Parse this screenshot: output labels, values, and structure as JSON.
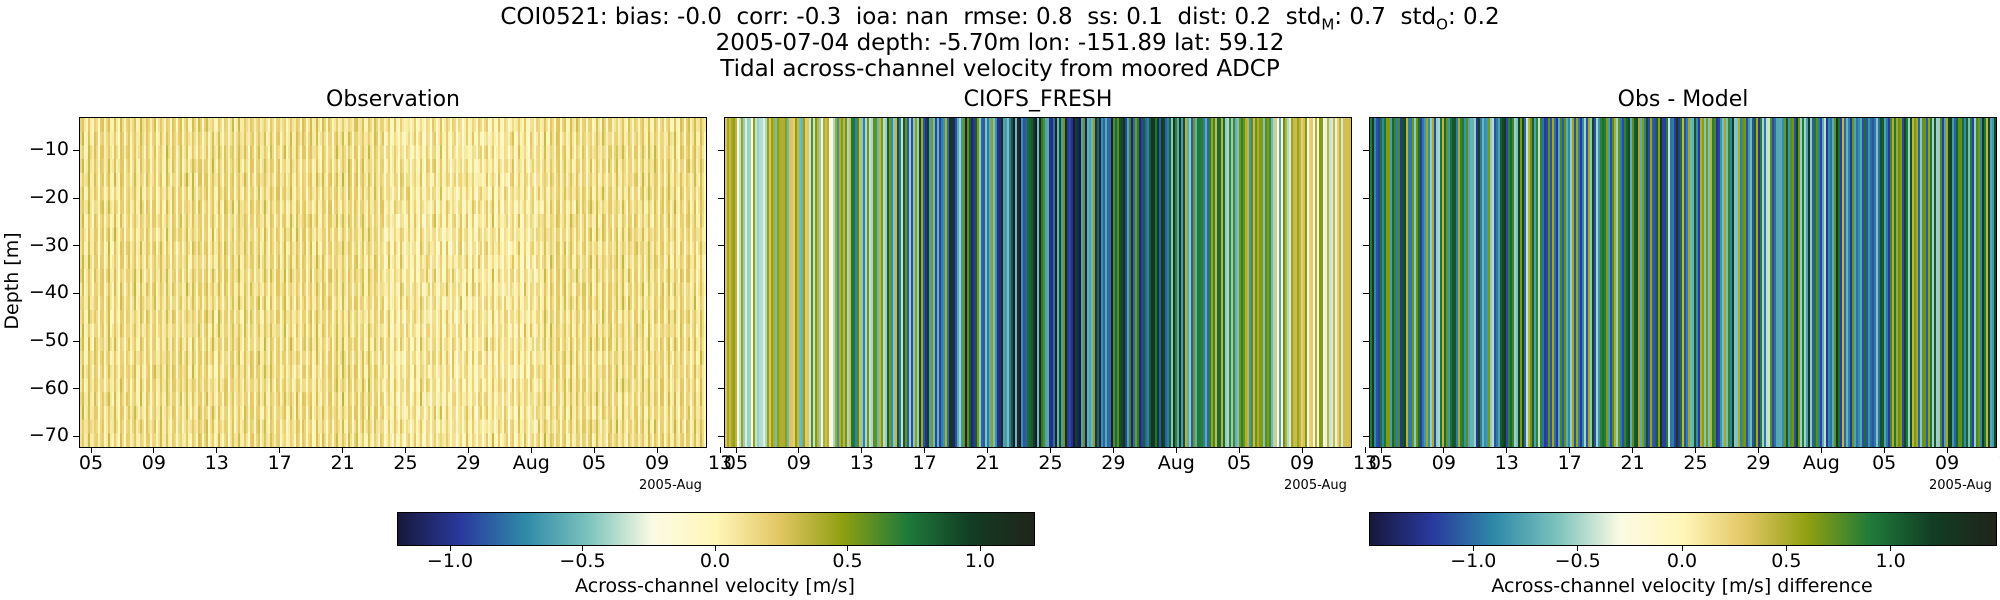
{
  "header": {
    "stats_line": "COI0521: bias: -0.0  corr: -0.3  ioa: nan  rmse: 0.8  ss: 0.1  dist: 0.2  std",
    "std_m_sub": "M",
    "stats_mid": ": 0.7  std",
    "std_o_sub": "O",
    "stats_end": ": 0.2",
    "line2": "2005-07-04 depth: -5.70m lon: -151.89 lat: 59.12",
    "line3": "Tidal across-channel velocity from moored ADCP"
  },
  "chart_data": [
    {
      "type": "heatmap",
      "title": "Observation",
      "ylabel": "Depth [m]",
      "ylim": [
        -72,
        -3
      ],
      "yticks": [
        -10,
        -20,
        -30,
        -40,
        -50,
        -60,
        -70
      ],
      "xticks": [
        "05",
        "09",
        "13",
        "17",
        "21",
        "25",
        "29",
        "Aug",
        "05",
        "09",
        "13"
      ],
      "x_offset_label": "2005-Aug",
      "x_range_days": [
        0,
        40
      ],
      "colormap": "delta",
      "amplitude": 0.35
    },
    {
      "type": "heatmap",
      "title": "CIOFS_FRESH",
      "ylim": [
        -72,
        -3
      ],
      "xticks": [
        "05",
        "09",
        "13",
        "17",
        "21",
        "25",
        "29",
        "Aug",
        "05",
        "09",
        "13"
      ],
      "x_offset_label": "2005-Aug",
      "x_range_days": [
        0,
        40
      ],
      "colormap": "delta",
      "amplitude": 1.2
    },
    {
      "type": "heatmap",
      "title": "Obs - Model",
      "ylim": [
        -72,
        -3
      ],
      "xticks": [
        "05",
        "09",
        "13",
        "17",
        "21",
        "25",
        "29",
        "Aug",
        "05",
        "09",
        "13"
      ],
      "x_offset_label": "2005-Aug",
      "x_range_days": [
        0,
        40
      ],
      "colormap": "delta",
      "amplitude": 1.4
    }
  ],
  "colorbars": [
    {
      "label": "Across-channel velocity [m/s]",
      "range": [
        -1.2,
        1.2
      ],
      "ticks": [
        "−1.0",
        "−0.5",
        "0.0",
        "0.5",
        "1.0"
      ],
      "tick_values": [
        -1.0,
        -0.5,
        0.0,
        0.5,
        1.0
      ]
    },
    {
      "label": "Across-channel velocity [m/s] difference",
      "range": [
        -1.5,
        1.5
      ],
      "ticks": [
        "−1.0",
        "−0.5",
        "0.0",
        "0.5",
        "1.0"
      ],
      "tick_values": [
        -1.0,
        -0.5,
        0.0,
        0.5,
        1.0
      ]
    }
  ],
  "colors": {
    "cmap_stops": [
      "#17183b",
      "#2a3a9e",
      "#2f8aa8",
      "#7cc3bd",
      "#fbfbe4",
      "#fff6b8",
      "#e2c664",
      "#8e9f10",
      "#1f7a3a",
      "#123d24",
      "#20241a"
    ]
  }
}
